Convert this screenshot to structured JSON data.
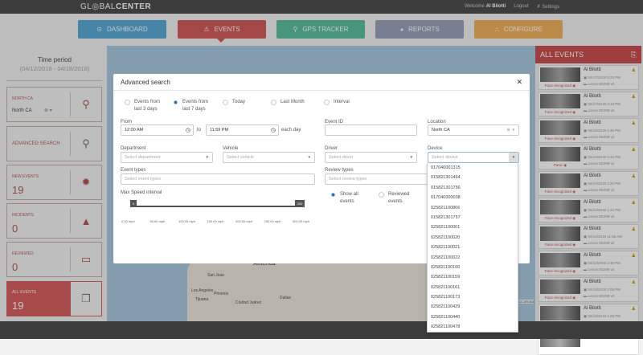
{
  "header": {
    "logo": "GL◎BAL",
    "logo_bold": "CENTER",
    "welcome": "Welcome",
    "user": "Al Bilotti",
    "logout": "Logout",
    "settings": "Settings"
  },
  "nav": [
    {
      "label": "DASHBOARD",
      "icon": "dashboard-icon",
      "color": "#5aaad8"
    },
    {
      "label": "EVENTS",
      "icon": "warning-icon",
      "color": "#d25c5c"
    },
    {
      "label": "GPS TRACKER",
      "icon": "map-pin-icon",
      "color": "#5cbfa0"
    },
    {
      "label": "REPORTS",
      "icon": "pie-chart-icon",
      "color": "#9aa3bd"
    },
    {
      "label": "CONFIGURE",
      "icon": "sitemap-icon",
      "color": "#f2b35e"
    }
  ],
  "sidebar": {
    "time_period_label": "Time period",
    "time_period": "(04/12/2018 - 04/18/2018)",
    "location_label": "NORTH CA",
    "location_value": "North CA",
    "advanced_search": "ADVANCED SEARCH",
    "new_events_label": "NEW EVENTS",
    "new_events": "19",
    "incidents_label": "INCIDENTS",
    "incidents": "0",
    "reviewed_label": "REVIEWED",
    "reviewed": "0",
    "all_events_label": "ALL EVENTS",
    "all_events": "19"
  },
  "events_panel": {
    "title": "ALL EVENTS",
    "items": [
      {
        "name": "Al Bilotti",
        "date": "04/17/2018 5:23 PM",
        "vehicle": "Lexus 0D298 v2",
        "tag": "Face recognized"
      },
      {
        "name": "Al Bilotti",
        "date": "04/17/2018 3:18 PM",
        "vehicle": "Lexus 0D298 v2",
        "tag": "Face recognized"
      },
      {
        "name": "Al Bilotti",
        "date": "04/15/2018 1:45 PM",
        "vehicle": "Lexus 0D298 v2",
        "tag": "Face recognized"
      },
      {
        "name": "Al Bilotti",
        "date": "04/14/2018 2:34 PM",
        "vehicle": "Lexus 0D298 v2",
        "tag": "Panic"
      },
      {
        "name": "Al Bilotti",
        "date": "04/14/2018 2:20 PM",
        "vehicle": "Lexus 0D298 v2",
        "tag": "Face recognized"
      },
      {
        "name": "Al Bilotti",
        "date": "04/14/2018 1:44 PM",
        "vehicle": "Lexus 0D298 v2",
        "tag": "Face recognized"
      },
      {
        "name": "Al Bilotti",
        "date": "04/14/2018 11:58 AM",
        "vehicle": "Lexus 0D298 v2",
        "tag": "Face recognized"
      },
      {
        "name": "Al Bilotti",
        "date": "04/13/2018 2:49 PM",
        "vehicle": "Lexus 0D298 v2",
        "tag": "Face recognized"
      },
      {
        "name": "Al Bilotti",
        "date": "04/13/2018 2:05 PM",
        "vehicle": "Lexus 0D298 v2",
        "tag": "Face recognized"
      },
      {
        "name": "Al Bilotti",
        "date": "04/13/2018 1:28 PM",
        "vehicle": "Lexus 0D298 v2",
        "tag": "Face recognized"
      },
      {
        "name": "Al Bilotti",
        "date": "",
        "vehicle": "",
        "tag": ""
      }
    ]
  },
  "map": {
    "labels": [
      "America",
      "San Jose",
      "Los Angeles",
      "Phoenix",
      "Tijuana",
      "Ciudad Juárez",
      "Dallas"
    ],
    "attribution": "Leaflet | Map data © OpenStreetMap contributors, CC-BY-SA"
  },
  "modal": {
    "title": "Advanced search",
    "radios": [
      {
        "label": "Events from last 3 days",
        "checked": false
      },
      {
        "label": "Events from last 7 days",
        "checked": true
      },
      {
        "label": "Today",
        "checked": false
      },
      {
        "label": "Last Month",
        "checked": false
      },
      {
        "label": "Interval",
        "checked": false
      }
    ],
    "from_label": "From",
    "from": "12:00 AM",
    "to_label": "to",
    "to": "11:59 PM",
    "each_day": "each day",
    "event_id_label": "Event ID",
    "event_id": "",
    "location_label": "Location",
    "location": "North CA",
    "department_label": "Department",
    "department_ph": "Select department",
    "vehicle_label": "Vehicle",
    "vehicle_ph": "Select vehicle",
    "driver_label": "Driver",
    "driver_ph": "Select driver",
    "device_label": "Device",
    "device_ph": "Select device",
    "event_types_label": "Event types",
    "event_types_ph": "Select event types",
    "review_types_label": "Review types",
    "review_types_ph": "Select review types",
    "speed_label": "Max Speed interval",
    "speed_min": "0",
    "speed_max": "300",
    "ticks": [
      "0.00 mph",
      "50.00 mph",
      "100.00 mph",
      "150.00 mph",
      "200.00 mph",
      "250.00 mph",
      "300.00 mph"
    ],
    "show_all": "Show all events",
    "reviewed": "Reviewed events"
  },
  "device_options": [
    "017040001315",
    "015821301464",
    "015821301756",
    "017040000038",
    "025821100866",
    "015821301757",
    "025821100001",
    "025821100020",
    "025821100021",
    "025821100022",
    "025821100100",
    "025821100159",
    "025821100161",
    "025821100173",
    "025821100429",
    "025821100440",
    "025821100478"
  ]
}
